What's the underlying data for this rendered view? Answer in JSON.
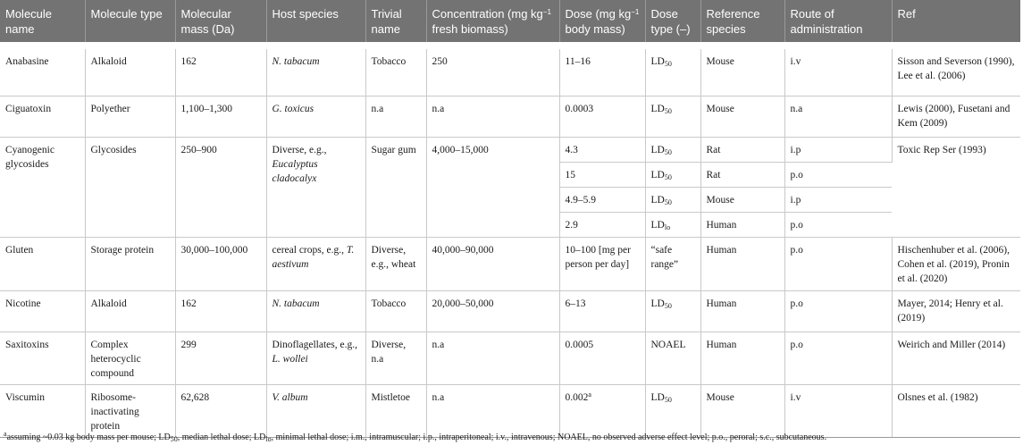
{
  "headers": {
    "molecule_name": "Molecule name",
    "molecule_type": "Molecule type",
    "molecular_mass": "Molecular mass (Da)",
    "host_species": "Host species",
    "trivial_name": "Trivial name",
    "concentration_pre": "Concentration (mg kg",
    "concentration_sup": "−1",
    "concentration_post": " fresh biomass)",
    "dose_pre": "Dose (mg kg",
    "dose_sup": "−1",
    "dose_post": " body mass)",
    "dose_type": "Dose type (–)",
    "reference_species": "Reference species",
    "route": "Route of administration",
    "ref": "Ref"
  },
  "common": {
    "ld": "LD",
    "ld50_sub": "50",
    "ldlo_sub": "lo"
  },
  "rows": {
    "anabasine": {
      "name": "Anabasine",
      "type": "Alkaloid",
      "mass": "162",
      "host": "N. tabacum",
      "trivial": "Tobacco",
      "conc": "250",
      "dose": "11–16",
      "species": "Mouse",
      "route": "i.v",
      "ref": "Sisson and Severson (1990), Lee et al. (2006)"
    },
    "ciguatoxin": {
      "name": "Ciguatoxin",
      "type": "Polyether",
      "mass": "1,100–1,300",
      "host": "G. toxicus",
      "trivial": "n.a",
      "conc": "n.a",
      "dose": "0.0003",
      "species": "Mouse",
      "route": "n.a",
      "ref": "Lewis (2000), Fusetani and Kem (2009)"
    },
    "cyanogenic": {
      "name": "Cyanogenic glycosides",
      "type": "Glycosides",
      "mass": "250–900",
      "host_pre": "Diverse, e.g., ",
      "host_it": "Eucalyptus cladocalyx",
      "trivial": "Sugar gum",
      "conc": "4,000–15,000",
      "ref": "Toxic Rep Ser (1993)",
      "sub": [
        {
          "dose": "4.3",
          "species": "Rat",
          "route": "i.p"
        },
        {
          "dose": "15",
          "species": "Rat",
          "route": "p.o"
        },
        {
          "dose": "4.9–5.9",
          "species": "Mouse",
          "route": "i.p"
        },
        {
          "dose": "2.9",
          "species": "Human",
          "route": "p.o"
        }
      ]
    },
    "gluten": {
      "name": "Gluten",
      "type": "Storage protein",
      "mass": "30,000–100,000",
      "host_pre": "cereal crops, e.g., ",
      "host_it": "T. aestivum",
      "trivial": "Diverse, e.g., wheat",
      "conc": "40,000–90,000",
      "dose": "10–100 [mg per person per day]",
      "dose_type": "“safe range”",
      "species": "Human",
      "route": "p.o",
      "ref": "Hischenhuber et al. (2006), Cohen et al. (2019), Pronin et al. (2020)"
    },
    "nicotine": {
      "name": "Nicotine",
      "type": "Alkaloid",
      "mass": "162",
      "host": "N. tabacum",
      "trivial": "Tobacco",
      "conc": "20,000–50,000",
      "dose": "6–13",
      "species": "Human",
      "route": "p.o",
      "ref": "Mayer, 2014; Henry et al. (2019)"
    },
    "saxitoxins": {
      "name": "Saxitoxins",
      "type": "Complex heterocyclic compound",
      "mass": "299",
      "host_pre": "Dinoflagellates, e.g., ",
      "host_it": "L. wollei",
      "trivial": "Diverse, n.a",
      "conc": "n.a",
      "dose": "0.0005",
      "dose_type": "NOAEL",
      "species": "Human",
      "route": "p.o",
      "ref": "Weirich and Miller (2014)"
    },
    "viscumin": {
      "name": "Viscumin",
      "type": "Ribosome-inactivating protein",
      "mass": "62,628",
      "host": "V. album",
      "trivial": "Mistletoe",
      "conc": "n.a",
      "dose": "0.002",
      "dose_sup": "a",
      "species": "Mouse",
      "route": "i.v",
      "ref": "Olsnes et al. (1982)"
    }
  },
  "footnote": {
    "mark": "a",
    "t1": "assuming ~0.03 kg body mass per mouse; LD",
    "s1": "50",
    "t2": ", median lethal dose; LD",
    "s2": "lo",
    "t3": ", minimal lethal dose; i.m., intramuscular; i.p., intraperitoneal; i.v., intravenous; NOAEL, no observed adverse effect level; p.o., peroral; s.c., subcutaneous."
  }
}
